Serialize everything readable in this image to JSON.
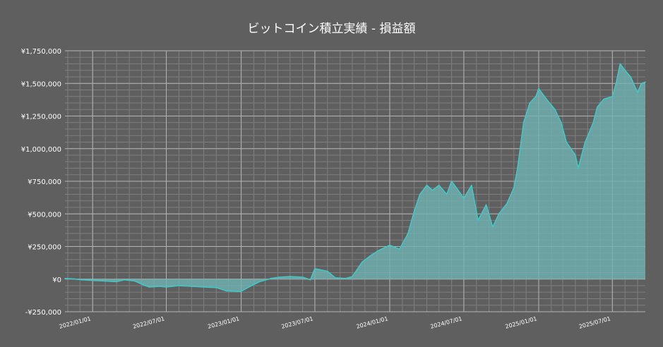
{
  "colors": {
    "background": "#5f5f5f",
    "grid_major": "#b4b4b4",
    "grid_minor": "#7f7f7f",
    "line": "#40c8c8",
    "area": "#6fb3b3",
    "text": "#ffffff"
  },
  "chart_data": {
    "type": "area",
    "title": "ビットコイン積立実績  -  損益額",
    "xlabel": "",
    "ylabel": "",
    "ylim": [
      -250000,
      1750000
    ],
    "xlim": [
      "2021-10-25",
      "2025-09-20"
    ],
    "y_ticks": [
      -250000,
      0,
      250000,
      500000,
      750000,
      1000000,
      1250000,
      1500000,
      1750000
    ],
    "y_tick_labels": [
      "-¥250,000",
      "¥0",
      "¥250,000",
      "¥500,000",
      "¥750,000",
      "¥1,000,000",
      "¥1,250,000",
      "¥1,500,000",
      "¥1,750,000"
    ],
    "x_ticks": [
      "2022-01-01",
      "2022-07-01",
      "2023-01-01",
      "2023-07-01",
      "2024-01-01",
      "2024-07-01",
      "2025-01-01",
      "2025-07-01"
    ],
    "x_tick_labels": [
      "2022/01/01",
      "2022/07/01",
      "2023/01/01",
      "2023/07/01",
      "2024/01/01",
      "2024/07/01",
      "2025/01/01",
      "2025/07/01"
    ],
    "grid": true,
    "legend": "none",
    "series": [
      {
        "x": [
          "2021-10-25",
          "2021-11-15",
          "2021-12-05",
          "2022-01-01",
          "2022-02-01",
          "2022-03-01",
          "2022-03-20",
          "2022-04-15",
          "2022-05-10",
          "2022-05-20",
          "2022-06-15",
          "2022-07-01",
          "2022-08-01",
          "2022-09-01",
          "2022-10-01",
          "2022-11-01",
          "2022-11-25",
          "2022-12-31",
          "2023-01-20",
          "2023-02-15",
          "2023-03-15",
          "2023-04-05",
          "2023-05-01",
          "2023-06-01",
          "2023-06-20",
          "2023-07-01",
          "2023-08-01",
          "2023-08-20",
          "2023-09-15",
          "2023-10-01",
          "2023-10-25",
          "2023-11-15",
          "2023-12-05",
          "2024-01-01",
          "2024-01-25",
          "2024-02-15",
          "2024-03-01",
          "2024-03-15",
          "2024-04-01",
          "2024-04-15",
          "2024-05-01",
          "2024-05-20",
          "2024-06-01",
          "2024-06-15",
          "2024-07-01",
          "2024-07-20",
          "2024-08-05",
          "2024-08-25",
          "2024-09-10",
          "2024-09-25",
          "2024-10-15",
          "2024-11-01",
          "2024-11-10",
          "2024-11-25",
          "2024-12-10",
          "2024-12-25",
          "2025-01-01",
          "2025-01-20",
          "2025-02-10",
          "2025-02-25",
          "2025-03-10",
          "2025-04-01",
          "2025-04-08",
          "2025-04-25",
          "2025-05-15",
          "2025-05-25",
          "2025-06-10",
          "2025-07-01",
          "2025-07-10",
          "2025-07-20",
          "2025-08-01",
          "2025-08-15",
          "2025-09-01",
          "2025-09-10",
          "2025-09-20"
        ],
        "values": [
          5000,
          2000,
          -5000,
          -10000,
          -15000,
          -20000,
          -5000,
          -15000,
          -50000,
          -60000,
          -55000,
          -60000,
          -50000,
          -55000,
          -60000,
          -65000,
          -90000,
          -95000,
          -60000,
          -20000,
          5000,
          15000,
          20000,
          15000,
          -5000,
          80000,
          60000,
          10000,
          5000,
          20000,
          130000,
          180000,
          220000,
          260000,
          230000,
          350000,
          520000,
          650000,
          720000,
          680000,
          720000,
          650000,
          750000,
          690000,
          620000,
          720000,
          450000,
          570000,
          400000,
          500000,
          580000,
          700000,
          850000,
          1200000,
          1350000,
          1400000,
          1460000,
          1380000,
          1300000,
          1200000,
          1050000,
          950000,
          850000,
          1050000,
          1200000,
          1320000,
          1380000,
          1400000,
          1500000,
          1650000,
          1600000,
          1550000,
          1430000,
          1500000,
          1510000
        ]
      }
    ]
  }
}
